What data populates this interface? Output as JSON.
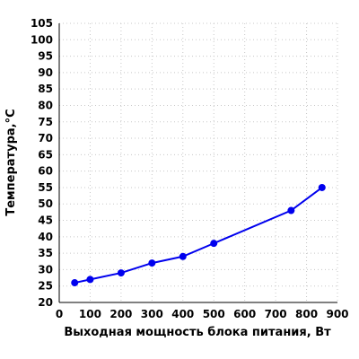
{
  "chart_data": {
    "type": "line",
    "xlabel": "Выходная мощность блока питания, Вт",
    "ylabel": "Температура,°С",
    "xlim": [
      0,
      900
    ],
    "ylim": [
      20,
      105
    ],
    "xticks": [
      0,
      100,
      200,
      300,
      400,
      500,
      600,
      700,
      800,
      900
    ],
    "yticks": [
      20,
      25,
      30,
      35,
      40,
      45,
      50,
      55,
      60,
      65,
      70,
      75,
      80,
      85,
      90,
      95,
      100,
      105
    ],
    "grid": true,
    "series": [
      {
        "color": "#0000ee",
        "x": [
          50,
          100,
          200,
          300,
          400,
          500,
          750,
          850
        ],
        "y": [
          26,
          27,
          29,
          32,
          34,
          38,
          48,
          55
        ]
      }
    ]
  }
}
